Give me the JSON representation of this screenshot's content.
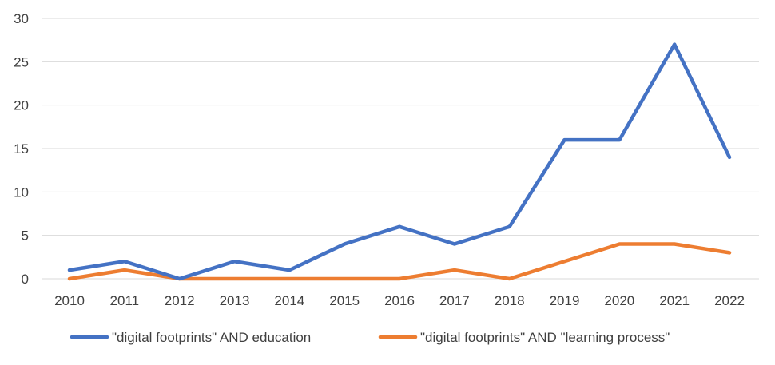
{
  "chart_data": {
    "type": "line",
    "title": "",
    "xlabel": "",
    "ylabel": "",
    "ylim": [
      0,
      30
    ],
    "yticks": [
      0,
      5,
      10,
      15,
      20,
      25,
      30
    ],
    "grid": "horizontal",
    "legend_position": "bottom",
    "categories": [
      "2010",
      "2011",
      "2012",
      "2013",
      "2014",
      "2015",
      "2016",
      "2017",
      "2018",
      "2019",
      "2020",
      "2021",
      "2022"
    ],
    "series": [
      {
        "name": "\"digital footprints\" AND education",
        "color": "#4472C4",
        "values": [
          1,
          2,
          0,
          2,
          1,
          4,
          6,
          4,
          6,
          16,
          16,
          27,
          14
        ]
      },
      {
        "name": "\"digital footprints\" AND \"learning process\"",
        "color": "#ED7D31",
        "values": [
          0,
          1,
          0,
          0,
          0,
          0,
          0,
          1,
          0,
          2,
          4,
          4,
          3
        ]
      }
    ]
  }
}
